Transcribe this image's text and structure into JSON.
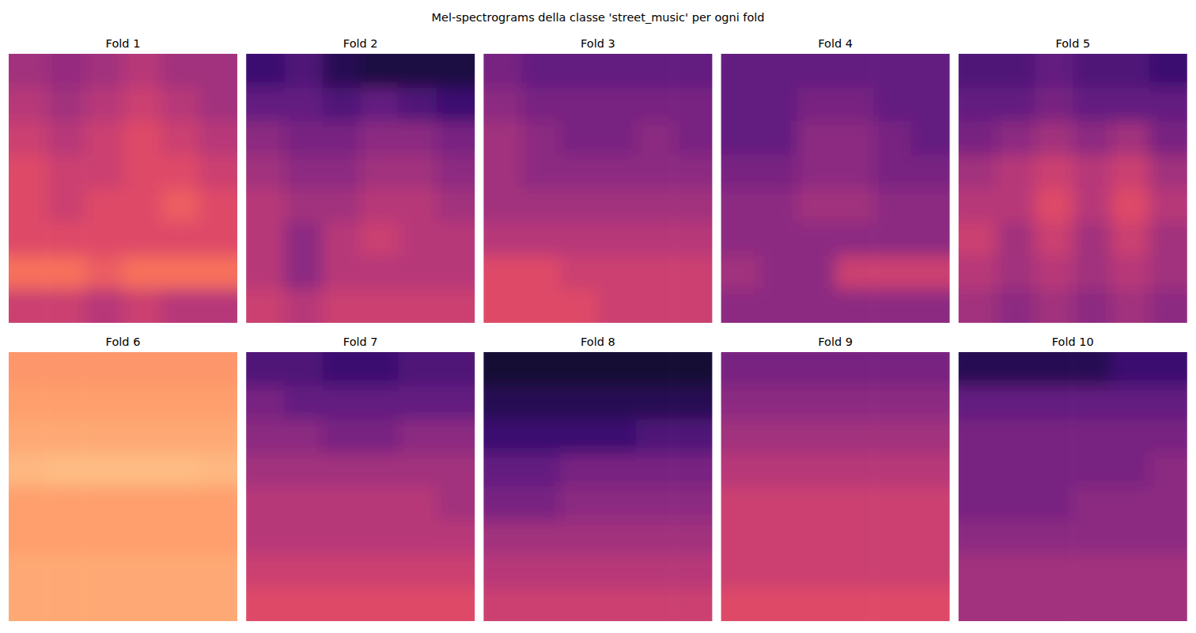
{
  "title": "Mel-spectrograms della classe 'street_music' per ogni fold",
  "chart_data": [
    {
      "type": "heatmap",
      "title": "Fold 1",
      "tick_labels": false,
      "zlim": [
        0,
        1
      ],
      "cells": [
        [
          0.45,
          0.42,
          0.45,
          0.5,
          0.45,
          0.45
        ],
        [
          0.5,
          0.45,
          0.5,
          0.55,
          0.5,
          0.45
        ],
        [
          0.55,
          0.5,
          0.55,
          0.6,
          0.55,
          0.5
        ],
        [
          0.6,
          0.55,
          0.55,
          0.6,
          0.6,
          0.55
        ],
        [
          0.6,
          0.55,
          0.6,
          0.6,
          0.65,
          0.6
        ],
        [
          0.6,
          0.6,
          0.6,
          0.6,
          0.6,
          0.6
        ],
        [
          0.7,
          0.7,
          0.65,
          0.7,
          0.7,
          0.7
        ],
        [
          0.55,
          0.55,
          0.5,
          0.55,
          0.5,
          0.5
        ]
      ]
    },
    {
      "type": "heatmap",
      "title": "Fold 2",
      "tick_labels": false,
      "zlim": [
        0,
        1
      ],
      "cells": [
        [
          0.2,
          0.25,
          0.15,
          0.12,
          0.12,
          0.12
        ],
        [
          0.3,
          0.3,
          0.25,
          0.3,
          0.25,
          0.2
        ],
        [
          0.4,
          0.35,
          0.35,
          0.4,
          0.4,
          0.35
        ],
        [
          0.45,
          0.4,
          0.4,
          0.45,
          0.45,
          0.4
        ],
        [
          0.5,
          0.45,
          0.45,
          0.5,
          0.5,
          0.45
        ],
        [
          0.5,
          0.4,
          0.5,
          0.55,
          0.5,
          0.5
        ],
        [
          0.5,
          0.4,
          0.5,
          0.5,
          0.5,
          0.5
        ],
        [
          0.55,
          0.5,
          0.55,
          0.55,
          0.55,
          0.55
        ]
      ]
    },
    {
      "type": "heatmap",
      "title": "Fold 3",
      "tick_labels": false,
      "zlim": [
        0,
        1
      ],
      "cells": [
        [
          0.35,
          0.3,
          0.3,
          0.3,
          0.3,
          0.3
        ],
        [
          0.4,
          0.35,
          0.35,
          0.35,
          0.35,
          0.35
        ],
        [
          0.45,
          0.4,
          0.35,
          0.35,
          0.4,
          0.35
        ],
        [
          0.45,
          0.4,
          0.4,
          0.4,
          0.4,
          0.4
        ],
        [
          0.45,
          0.45,
          0.45,
          0.45,
          0.45,
          0.45
        ],
        [
          0.5,
          0.5,
          0.5,
          0.5,
          0.5,
          0.5
        ],
        [
          0.6,
          0.6,
          0.55,
          0.55,
          0.55,
          0.55
        ],
        [
          0.6,
          0.6,
          0.6,
          0.55,
          0.55,
          0.55
        ]
      ]
    },
    {
      "type": "heatmap",
      "title": "Fold 4",
      "tick_labels": false,
      "zlim": [
        0,
        1
      ],
      "cells": [
        [
          0.3,
          0.3,
          0.3,
          0.3,
          0.3,
          0.3
        ],
        [
          0.3,
          0.3,
          0.35,
          0.35,
          0.3,
          0.3
        ],
        [
          0.3,
          0.3,
          0.4,
          0.4,
          0.35,
          0.3
        ],
        [
          0.35,
          0.35,
          0.4,
          0.4,
          0.35,
          0.35
        ],
        [
          0.4,
          0.4,
          0.45,
          0.45,
          0.4,
          0.4
        ],
        [
          0.4,
          0.4,
          0.4,
          0.4,
          0.4,
          0.4
        ],
        [
          0.45,
          0.4,
          0.4,
          0.55,
          0.55,
          0.55
        ],
        [
          0.4,
          0.4,
          0.4,
          0.4,
          0.4,
          0.4
        ]
      ]
    },
    {
      "type": "heatmap",
      "title": "Fold 5",
      "tick_labels": false,
      "zlim": [
        0,
        1
      ],
      "cells": [
        [
          0.25,
          0.25,
          0.3,
          0.25,
          0.25,
          0.2
        ],
        [
          0.3,
          0.3,
          0.35,
          0.3,
          0.3,
          0.3
        ],
        [
          0.35,
          0.4,
          0.45,
          0.4,
          0.45,
          0.35
        ],
        [
          0.45,
          0.5,
          0.55,
          0.5,
          0.55,
          0.45
        ],
        [
          0.5,
          0.5,
          0.6,
          0.5,
          0.6,
          0.5
        ],
        [
          0.55,
          0.45,
          0.55,
          0.45,
          0.55,
          0.45
        ],
        [
          0.5,
          0.45,
          0.5,
          0.45,
          0.5,
          0.45
        ],
        [
          0.45,
          0.4,
          0.45,
          0.4,
          0.45,
          0.4
        ]
      ]
    },
    {
      "type": "heatmap",
      "title": "Fold 6",
      "tick_labels": false,
      "zlim": [
        0,
        1
      ],
      "cells": [
        [
          0.78,
          0.78,
          0.78,
          0.78,
          0.78,
          0.78
        ],
        [
          0.8,
          0.8,
          0.8,
          0.8,
          0.8,
          0.8
        ],
        [
          0.82,
          0.82,
          0.82,
          0.82,
          0.82,
          0.82
        ],
        [
          0.85,
          0.86,
          0.86,
          0.86,
          0.86,
          0.85
        ],
        [
          0.8,
          0.8,
          0.8,
          0.8,
          0.8,
          0.8
        ],
        [
          0.8,
          0.8,
          0.8,
          0.8,
          0.8,
          0.8
        ],
        [
          0.82,
          0.82,
          0.82,
          0.82,
          0.82,
          0.82
        ],
        [
          0.82,
          0.82,
          0.82,
          0.82,
          0.82,
          0.82
        ]
      ]
    },
    {
      "type": "heatmap",
      "title": "Fold 7",
      "tick_labels": false,
      "zlim": [
        0,
        1
      ],
      "cells": [
        [
          0.25,
          0.25,
          0.2,
          0.2,
          0.25,
          0.25
        ],
        [
          0.35,
          0.3,
          0.3,
          0.3,
          0.3,
          0.3
        ],
        [
          0.4,
          0.4,
          0.35,
          0.35,
          0.4,
          0.4
        ],
        [
          0.45,
          0.45,
          0.45,
          0.45,
          0.45,
          0.45
        ],
        [
          0.5,
          0.5,
          0.5,
          0.5,
          0.5,
          0.45
        ],
        [
          0.5,
          0.5,
          0.5,
          0.5,
          0.5,
          0.5
        ],
        [
          0.55,
          0.55,
          0.55,
          0.55,
          0.55,
          0.55
        ],
        [
          0.6,
          0.6,
          0.6,
          0.6,
          0.6,
          0.6
        ]
      ]
    },
    {
      "type": "heatmap",
      "title": "Fold 8",
      "tick_labels": false,
      "zlim": [
        0,
        1
      ],
      "cells": [
        [
          0.1,
          0.1,
          0.1,
          0.1,
          0.1,
          0.1
        ],
        [
          0.15,
          0.15,
          0.15,
          0.15,
          0.15,
          0.15
        ],
        [
          0.2,
          0.2,
          0.2,
          0.2,
          0.25,
          0.25
        ],
        [
          0.3,
          0.3,
          0.35,
          0.35,
          0.35,
          0.35
        ],
        [
          0.35,
          0.35,
          0.4,
          0.4,
          0.4,
          0.4
        ],
        [
          0.45,
          0.45,
          0.45,
          0.45,
          0.45,
          0.45
        ],
        [
          0.5,
          0.5,
          0.5,
          0.5,
          0.5,
          0.5
        ],
        [
          0.55,
          0.55,
          0.55,
          0.55,
          0.55,
          0.55
        ]
      ]
    },
    {
      "type": "heatmap",
      "title": "Fold 9",
      "tick_labels": false,
      "zlim": [
        0,
        1
      ],
      "cells": [
        [
          0.35,
          0.35,
          0.35,
          0.35,
          0.35,
          0.35
        ],
        [
          0.4,
          0.4,
          0.4,
          0.4,
          0.4,
          0.4
        ],
        [
          0.45,
          0.45,
          0.45,
          0.45,
          0.45,
          0.45
        ],
        [
          0.5,
          0.5,
          0.5,
          0.5,
          0.5,
          0.5
        ],
        [
          0.55,
          0.55,
          0.55,
          0.55,
          0.55,
          0.55
        ],
        [
          0.55,
          0.55,
          0.55,
          0.55,
          0.55,
          0.55
        ],
        [
          0.55,
          0.55,
          0.55,
          0.55,
          0.55,
          0.55
        ],
        [
          0.6,
          0.6,
          0.6,
          0.6,
          0.6,
          0.6
        ]
      ]
    },
    {
      "type": "heatmap",
      "title": "Fold 10",
      "tick_labels": false,
      "zlim": [
        0,
        1
      ],
      "cells": [
        [
          0.15,
          0.15,
          0.15,
          0.15,
          0.2,
          0.2
        ],
        [
          0.3,
          0.3,
          0.3,
          0.3,
          0.3,
          0.3
        ],
        [
          0.35,
          0.35,
          0.35,
          0.35,
          0.35,
          0.35
        ],
        [
          0.35,
          0.35,
          0.35,
          0.35,
          0.35,
          0.4
        ],
        [
          0.35,
          0.35,
          0.35,
          0.4,
          0.4,
          0.4
        ],
        [
          0.4,
          0.4,
          0.4,
          0.4,
          0.4,
          0.4
        ],
        [
          0.45,
          0.45,
          0.45,
          0.45,
          0.45,
          0.45
        ],
        [
          0.45,
          0.45,
          0.45,
          0.45,
          0.45,
          0.45
        ]
      ]
    }
  ]
}
